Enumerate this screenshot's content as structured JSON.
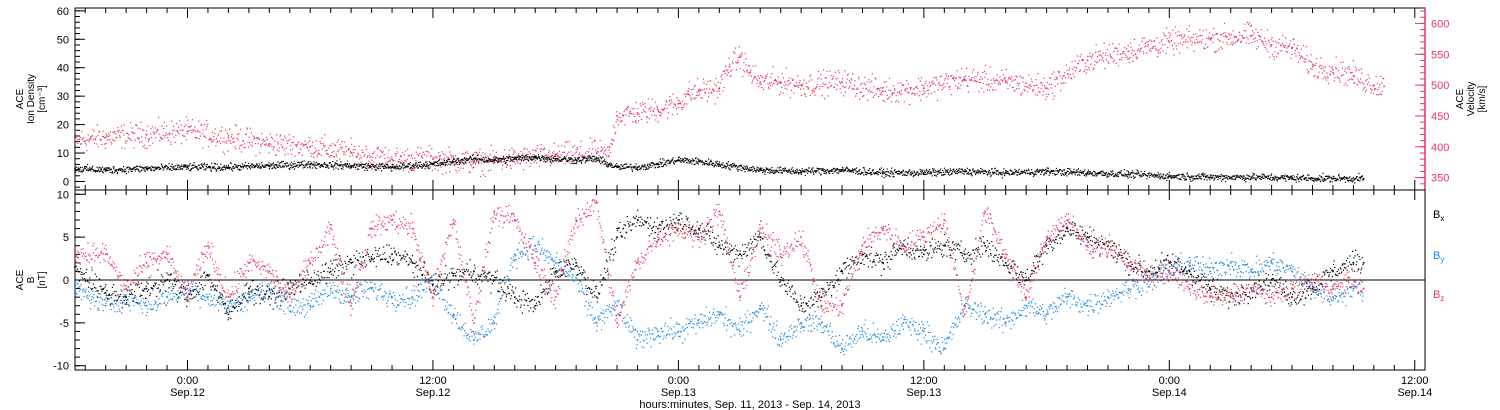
{
  "colors": {
    "black": "#000000",
    "pink": "#e8365f",
    "blue": "#1f86e0",
    "axis": "#000000"
  },
  "x_axis": {
    "tick_times": [
      "0:00",
      "12:00",
      "0:00",
      "12:00",
      "0:00",
      "12:00"
    ],
    "tick_dates": [
      "Sep.12",
      "Sep.12",
      "Sep.13",
      "Sep.13",
      "Sep.14",
      "Sep.14"
    ],
    "xlabel": "hours:minutes, Sep. 11, 2013 - Sep. 14, 2013"
  },
  "chart_data": [
    {
      "type": "scatter",
      "panel": "top",
      "left_axis": {
        "label_lines": [
          "ACE",
          "Ion Density",
          "[cm⁻³]"
        ],
        "ylim": [
          -3,
          61
        ],
        "ticks": [
          0,
          10,
          20,
          30,
          40,
          50,
          60
        ],
        "tick_labels": [
          "0",
          "10",
          "20",
          "30",
          "40",
          "50",
          "60"
        ]
      },
      "right_axis": {
        "label_lines": [
          "ACE",
          "Velocity",
          "[km/s]"
        ],
        "ylim": [
          330,
          625
        ],
        "ticks": [
          350,
          400,
          450,
          500,
          550,
          600
        ],
        "tick_labels": [
          "350",
          "400",
          "450",
          "500",
          "550",
          "600"
        ]
      },
      "x_unit": "hours after 0:00 Sep. 11, 2013",
      "xlim": [
        18.5,
        84.5
      ],
      "grid": false,
      "series": [
        {
          "axis": "left",
          "color_key": "black",
          "x": [
            18.5,
            20,
            22,
            24,
            26,
            28,
            30,
            32,
            34,
            35,
            36,
            37,
            38,
            39,
            40,
            41,
            42,
            43,
            44,
            44.6,
            45,
            46,
            47,
            48,
            49,
            50,
            52,
            54,
            56,
            58,
            60,
            62,
            64,
            66,
            68,
            70,
            72,
            74,
            76,
            78,
            80,
            81.5
          ],
          "y": [
            4.5,
            4,
            4.5,
            5,
            5,
            5.5,
            6,
            5.5,
            5,
            5.5,
            6,
            7,
            8,
            7.5,
            8,
            8.5,
            8,
            7.5,
            8,
            6,
            5,
            5,
            6,
            7.5,
            7,
            6,
            4,
            3.5,
            4,
            3,
            3,
            3.5,
            3,
            3.5,
            3,
            2.5,
            1.8,
            1.5,
            1.5,
            1.2,
            1,
            1
          ]
        },
        {
          "axis": "right",
          "color_key": "pink",
          "x": [
            18.5,
            20,
            22,
            24,
            26,
            28,
            30,
            32,
            34,
            36,
            38,
            40,
            42,
            44,
            44.6,
            45,
            46,
            47,
            48,
            48.5,
            49,
            50,
            50.5,
            51,
            51.5,
            52,
            53,
            54,
            56,
            58,
            60,
            62,
            64,
            66,
            68,
            70,
            72,
            74,
            76,
            77,
            78,
            79,
            80,
            81,
            82,
            82.5
          ],
          "y": [
            410,
            415,
            420,
            425,
            415,
            405,
            400,
            390,
            380,
            380,
            375,
            380,
            385,
            390,
            385,
            450,
            455,
            460,
            470,
            485,
            490,
            495,
            530,
            545,
            520,
            505,
            505,
            500,
            505,
            490,
            495,
            510,
            505,
            495,
            540,
            555,
            570,
            575,
            580,
            565,
            560,
            530,
            525,
            515,
            500,
            498
          ]
        }
      ]
    },
    {
      "type": "scatter",
      "panel": "bottom",
      "left_axis": {
        "label_lines": [
          "ACE",
          "B",
          "[nT]"
        ],
        "ylim": [
          -10.5,
          10.5
        ],
        "ticks": [
          -10,
          -5,
          0,
          5,
          10
        ],
        "tick_labels": [
          "-10",
          "-5",
          "0",
          "5",
          "10"
        ]
      },
      "zero_line": true,
      "x_unit": "hours after 0:00 Sep. 11, 2013",
      "xlim": [
        18.5,
        84.5
      ],
      "grid": false,
      "series": [
        {
          "name": "Bx",
          "color_key": "black",
          "x": [
            18.5,
            20,
            21,
            22,
            23,
            24,
            25,
            26,
            27,
            28,
            29,
            30,
            31,
            32,
            33,
            34,
            35,
            36,
            37,
            38,
            39,
            40,
            41,
            42,
            43,
            44,
            45,
            46,
            47,
            48,
            49,
            50,
            51,
            52,
            53,
            54,
            55,
            56,
            57,
            58,
            59,
            60,
            61,
            62,
            63,
            64,
            65,
            66,
            67,
            68,
            69,
            70,
            71,
            72,
            73,
            74,
            75,
            76,
            77,
            78,
            79,
            80,
            81,
            81.5
          ],
          "y": [
            1.5,
            -1.5,
            -2,
            -1,
            0,
            -2,
            0.5,
            -4,
            -1,
            -2,
            -1,
            0,
            1,
            2,
            2.5,
            3,
            2,
            -0.5,
            0.5,
            1,
            0,
            -2,
            -3,
            1,
            2,
            -2,
            5,
            7,
            6,
            7,
            6,
            4,
            3,
            5,
            0,
            -3,
            -2,
            1,
            3,
            2,
            4,
            3,
            4,
            3,
            4,
            2,
            0,
            4,
            6,
            5,
            4,
            2,
            1,
            2,
            1,
            -1,
            -2,
            -1,
            0,
            -2,
            -1,
            1,
            2,
            2
          ]
        },
        {
          "name": "By",
          "color_key": "blue",
          "x": [
            18.5,
            20,
            21,
            22,
            23,
            24,
            25,
            26,
            27,
            28,
            29,
            30,
            31,
            32,
            33,
            34,
            35,
            36,
            37,
            38,
            39,
            40,
            41,
            42,
            43,
            44,
            45,
            46,
            47,
            48,
            49,
            50,
            51,
            52,
            53,
            54,
            55,
            56,
            57,
            58,
            59,
            60,
            61,
            62,
            63,
            64,
            65,
            66,
            67,
            68,
            69,
            70,
            71,
            72,
            73,
            74,
            75,
            76,
            77,
            78,
            79,
            80,
            81,
            81.5
          ],
          "y": [
            -1,
            -3,
            -2,
            -3,
            -2,
            -1,
            -2,
            -3,
            -2,
            -1,
            -3,
            -3,
            -1,
            -2,
            -1,
            -2,
            -2,
            0,
            -4,
            -7,
            -5,
            3,
            4,
            2,
            0,
            -5,
            -3,
            -7,
            -6,
            -6,
            -5,
            -4,
            -6,
            -3,
            -7,
            -5,
            -5,
            -8,
            -6,
            -7,
            -5,
            -6,
            -8,
            -3,
            -4,
            -5,
            -3,
            -4,
            -2,
            -3,
            -2,
            -1,
            0,
            1,
            2,
            1,
            2,
            1,
            2,
            1,
            -1,
            -2,
            -1,
            -1
          ]
        },
        {
          "name": "Bz",
          "color_key": "pink",
          "x": [
            18.5,
            20,
            21,
            22,
            23,
            24,
            25,
            26,
            27,
            28,
            29,
            30,
            31,
            32,
            33,
            34,
            35,
            36,
            37,
            38,
            39,
            40,
            41,
            42,
            43,
            44,
            45,
            46,
            47,
            48,
            49,
            50,
            51,
            52,
            53,
            54,
            55,
            56,
            57,
            58,
            59,
            60,
            61,
            62,
            63,
            64,
            65,
            66,
            67,
            68,
            69,
            70,
            71,
            72,
            73,
            74,
            75,
            76,
            77,
            78,
            79,
            80,
            81,
            81.5
          ],
          "y": [
            3,
            3,
            -1,
            2,
            3,
            -2,
            4,
            -2,
            2,
            1,
            -2,
            2,
            6,
            -3,
            6,
            7,
            6,
            -2,
            7,
            -5,
            8,
            7,
            2,
            -2,
            7,
            9,
            -5,
            2,
            5,
            6,
            5,
            8,
            -2,
            6,
            3,
            5,
            -3,
            -3,
            4,
            6,
            4,
            5,
            7,
            -4,
            8,
            3,
            -2,
            5,
            7,
            4,
            4,
            2,
            0,
            1,
            -1,
            -2,
            -2,
            -1,
            -2,
            -1,
            0,
            -1,
            0,
            -1
          ]
        }
      ],
      "legend": {
        "placement": "right",
        "entries": [
          {
            "main": "B",
            "sub": "x",
            "color_key": "black"
          },
          {
            "main": "B",
            "sub": "y",
            "color_key": "blue"
          },
          {
            "main": "B",
            "sub": "z",
            "color_key": "pink"
          }
        ]
      }
    }
  ]
}
